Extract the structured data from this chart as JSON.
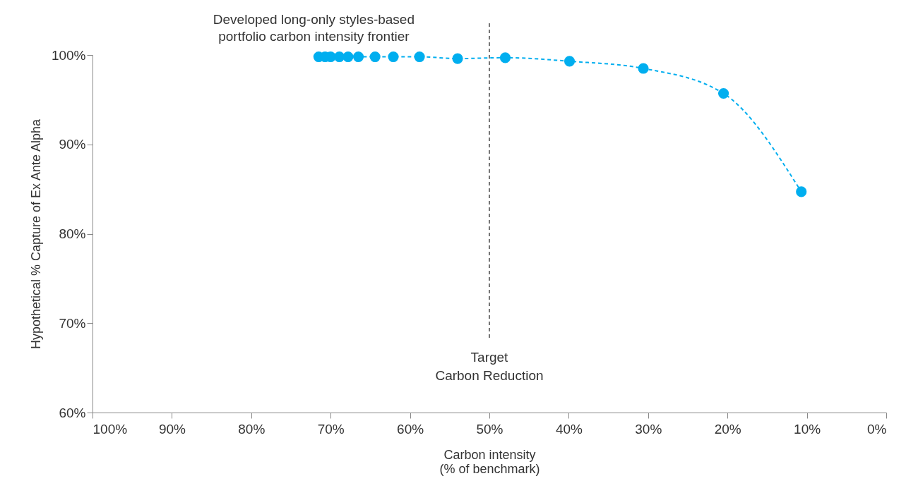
{
  "chart_data": {
    "type": "line",
    "title": "Developed long-only styles-based\nportfolio carbon intensity frontier",
    "xlabel": "Carbon intensity\n(% of benchmark)",
    "ylabel": "Hypothetical % Capture of Ex Ante Alpha",
    "x": [
      71.5,
      70.7,
      70.0,
      68.9,
      67.8,
      66.5,
      64.4,
      62.1,
      58.8,
      54.0,
      48.0,
      39.9,
      30.6,
      20.5,
      10.7
    ],
    "series": [
      {
        "color": "#00aeef",
        "values": [
          99.8,
          99.8,
          99.8,
          99.8,
          99.8,
          99.8,
          99.8,
          99.8,
          99.8,
          99.6,
          99.7,
          99.3,
          98.5,
          95.7,
          84.7
        ]
      }
    ],
    "xlim": [
      100,
      0
    ],
    "ylim": [
      60,
      100
    ],
    "xticks": [
      {
        "value": 100,
        "label": "100%"
      },
      {
        "value": 90,
        "label": "90%"
      },
      {
        "value": 80,
        "label": "80%"
      },
      {
        "value": 70,
        "label": "70%"
      },
      {
        "value": 60,
        "label": "60%"
      },
      {
        "value": 50,
        "label": "50%"
      },
      {
        "value": 40,
        "label": "40%"
      },
      {
        "value": 30,
        "label": "30%"
      },
      {
        "value": 20,
        "label": "20%"
      },
      {
        "value": 10,
        "label": "10%"
      },
      {
        "value": 0,
        "label": "0%"
      }
    ],
    "yticks": [
      {
        "value": 60,
        "label": "60%"
      },
      {
        "value": 70,
        "label": "70%"
      },
      {
        "value": 80,
        "label": "80%"
      },
      {
        "value": 90,
        "label": "90%"
      },
      {
        "value": 100,
        "label": "100%"
      }
    ],
    "ref_lines": [
      {
        "axis": "x",
        "value": 50,
        "label": "Target\nCarbon Reduction",
        "color": "#777777",
        "line_style": "dashed"
      }
    ],
    "grid": false,
    "marker": "circle",
    "line_style": "dashed"
  }
}
